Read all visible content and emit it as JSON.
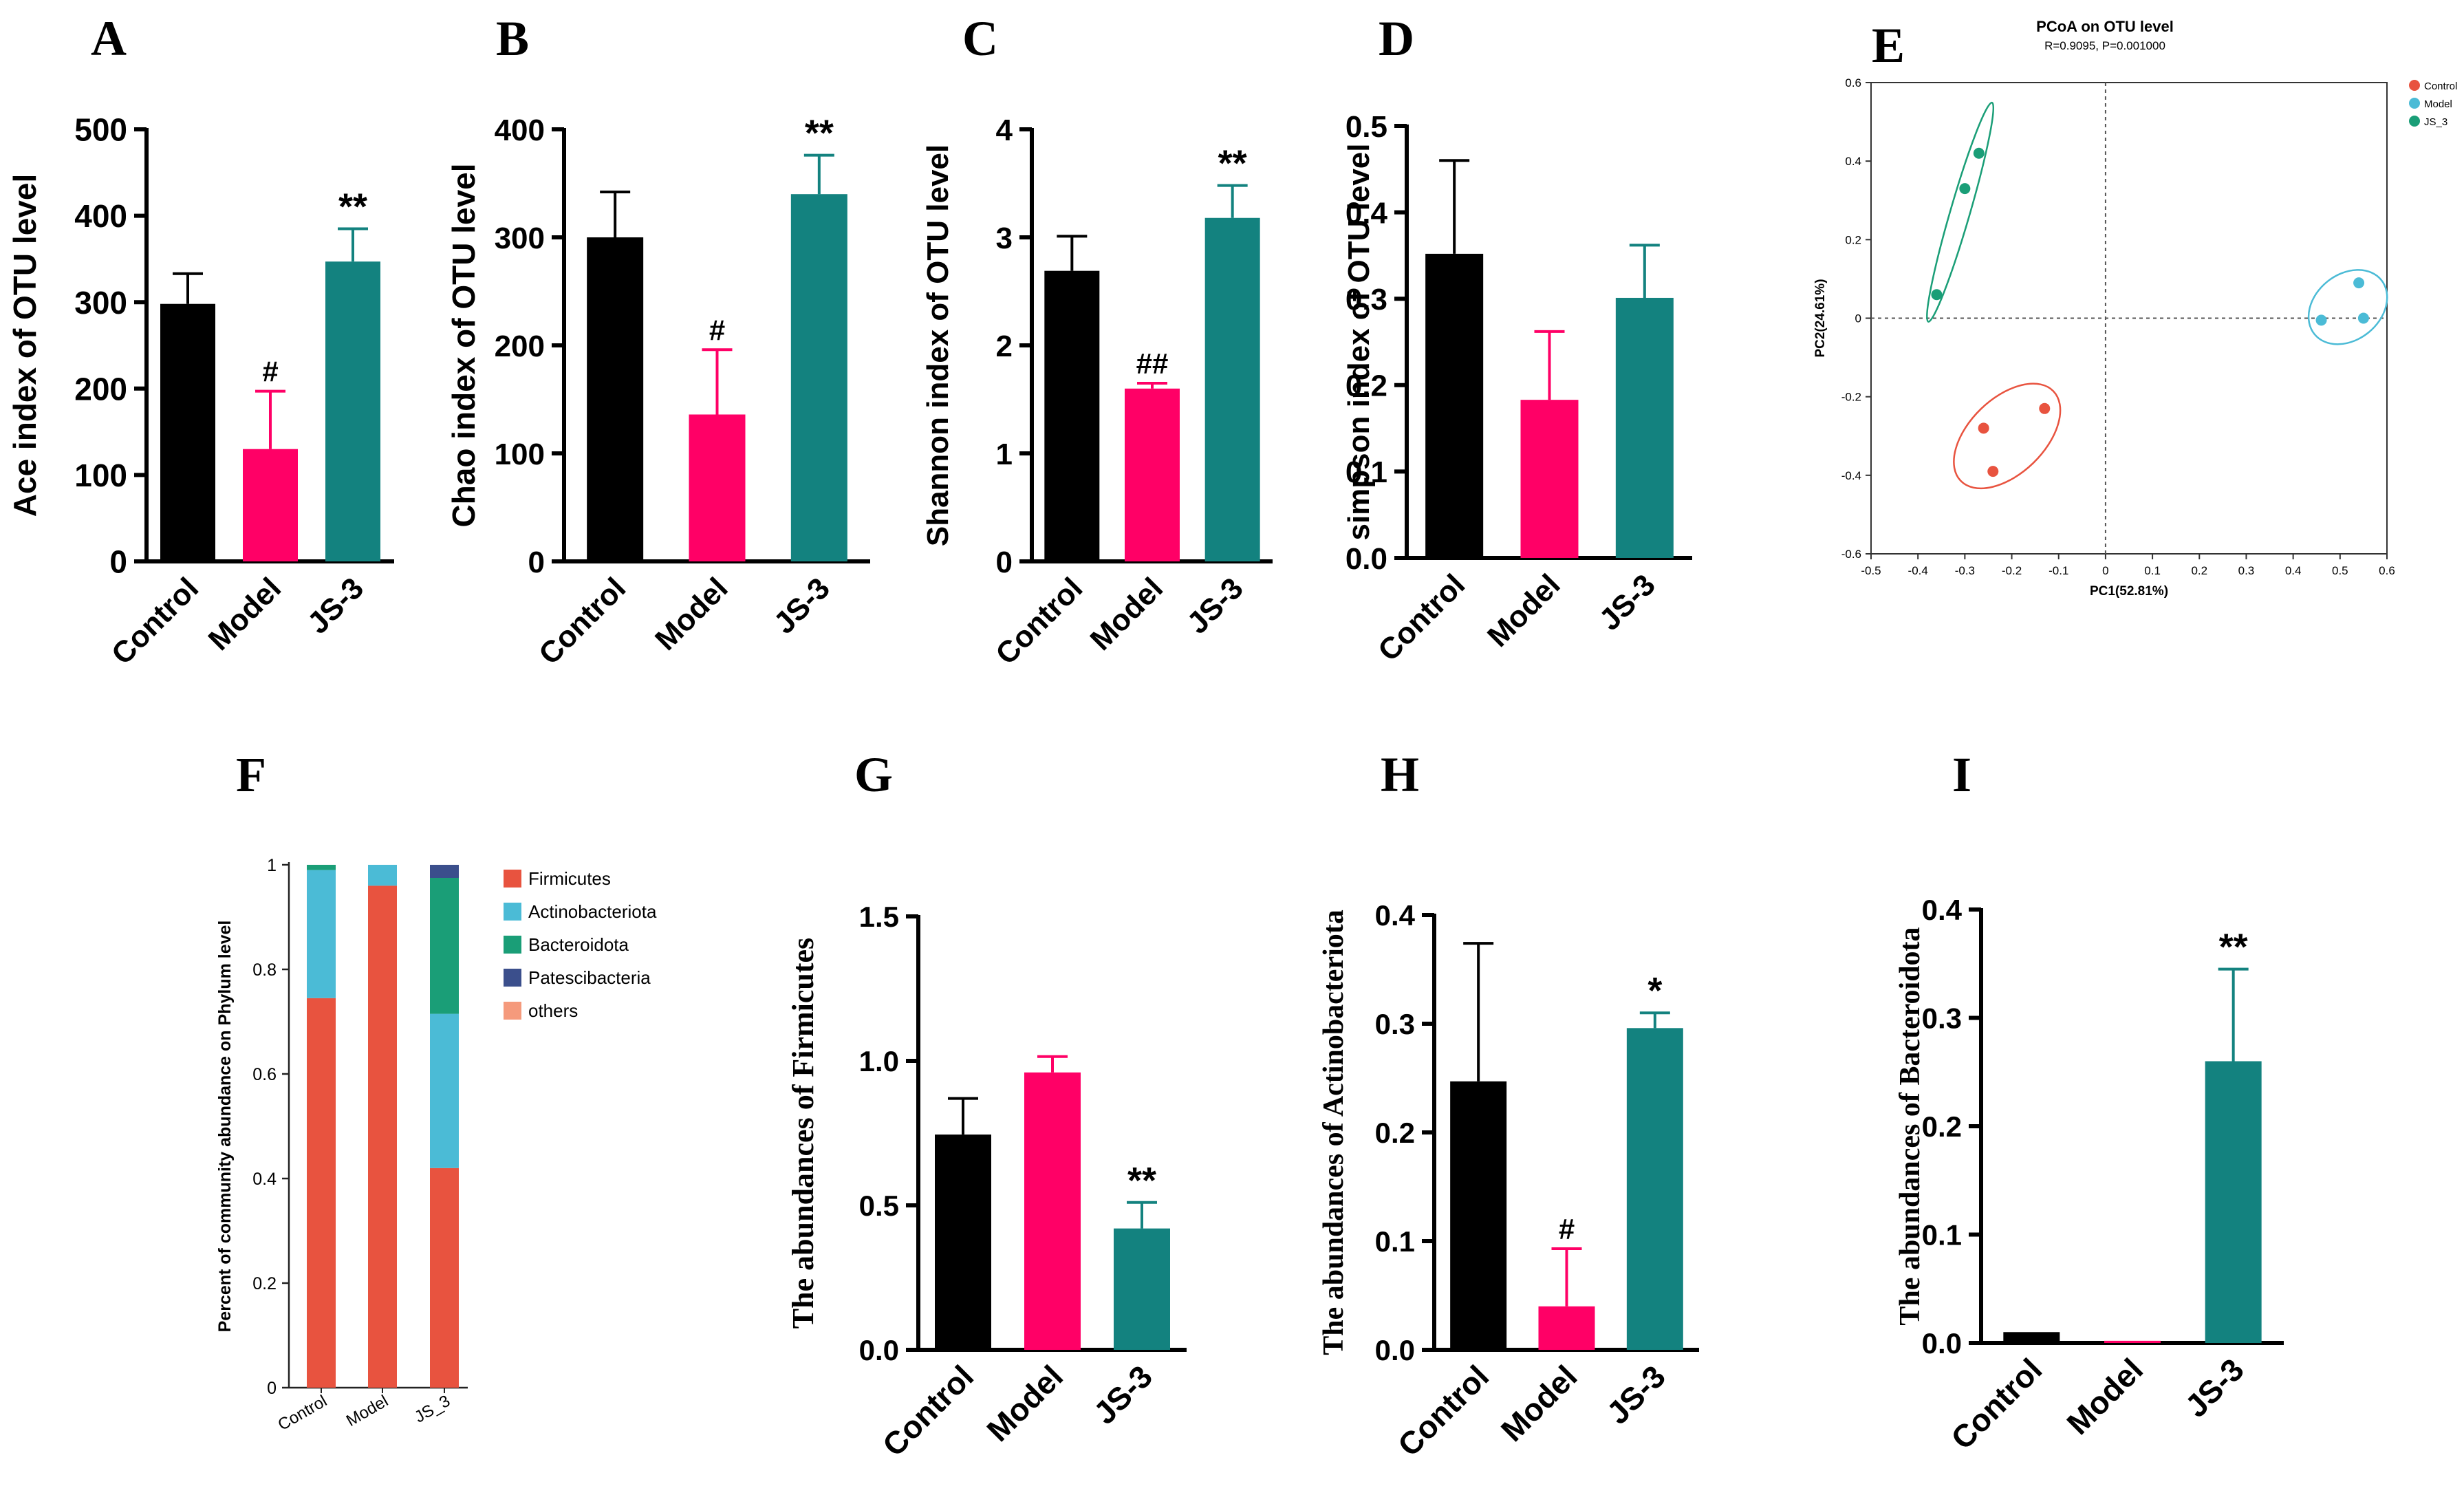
{
  "panels": {
    "A": {
      "letter": "A"
    },
    "B": {
      "letter": "B"
    },
    "C": {
      "letter": "C"
    },
    "D": {
      "letter": "D"
    },
    "E": {
      "letter": "E"
    },
    "F": {
      "letter": "F"
    },
    "G": {
      "letter": "G"
    },
    "H": {
      "letter": "H"
    },
    "I": {
      "letter": "I"
    }
  },
  "colors": {
    "control": "#000000",
    "model": "#ff0066",
    "js3": "#13827f",
    "pcoa_control": "#e8533f",
    "pcoa_model": "#4bbbd6",
    "pcoa_js3": "#1a9e77",
    "firmicutes": "#e8533f",
    "actinobacteriota": "#4bbbd6",
    "bacteroidota": "#1a9e77",
    "patescibacteria": "#3b4f8c",
    "others": "#f59a7c"
  },
  "chart_data": [
    {
      "id": "A",
      "type": "bar",
      "title": "",
      "xlabel": "",
      "ylabel": "Ace index of OTU level",
      "categories": [
        "Control",
        "Model",
        "JS-3"
      ],
      "values": [
        298,
        130,
        347
      ],
      "errors": [
        35,
        67,
        38
      ],
      "annotations": [
        "",
        "#",
        "**"
      ],
      "ylim": [
        0,
        500
      ],
      "yticks": [
        0,
        100,
        200,
        300,
        400,
        500
      ]
    },
    {
      "id": "B",
      "type": "bar",
      "title": "",
      "xlabel": "",
      "ylabel": "Chao index of OTU level",
      "categories": [
        "Control",
        "Model",
        "JS-3"
      ],
      "values": [
        300,
        136,
        340
      ],
      "errors": [
        42,
        60,
        36
      ],
      "annotations": [
        "",
        "#",
        "**"
      ],
      "ylim": [
        0,
        400
      ],
      "yticks": [
        0,
        100,
        200,
        300,
        400
      ]
    },
    {
      "id": "C",
      "type": "bar",
      "title": "",
      "xlabel": "",
      "ylabel": "Shannon index of OTU level",
      "categories": [
        "Control",
        "Model",
        "JS-3"
      ],
      "values": [
        2.69,
        1.6,
        3.18
      ],
      "errors": [
        0.32,
        0.05,
        0.3
      ],
      "annotations": [
        "",
        "##",
        "**"
      ],
      "ylim": [
        0,
        4
      ],
      "yticks": [
        0,
        1,
        2,
        3,
        4
      ]
    },
    {
      "id": "D",
      "type": "bar",
      "title": "",
      "xlabel": "",
      "ylabel": "simpson index of OTU level",
      "categories": [
        "Control",
        "Model",
        "JS-3"
      ],
      "values": [
        0.352,
        0.183,
        0.301
      ],
      "errors": [
        0.108,
        0.079,
        0.061
      ],
      "annotations": [
        "",
        "",
        ""
      ],
      "ylim": [
        0,
        0.5
      ],
      "yticks": [
        0.0,
        0.1,
        0.2,
        0.3,
        0.4,
        0.5
      ]
    },
    {
      "id": "E",
      "type": "scatter",
      "title": "PCoA on OTU level",
      "subtitle": "R=0.9095, P=0.001000",
      "xlabel": "PC1(52.81%)",
      "ylabel": "PC2(24.61%)",
      "xlim": [
        -0.5,
        0.6
      ],
      "ylim": [
        -0.6,
        0.6
      ],
      "xticks": [
        -0.5,
        -0.4,
        -0.3,
        -0.2,
        -0.1,
        0,
        0.1,
        0.2,
        0.3,
        0.4,
        0.5,
        0.6
      ],
      "yticks": [
        -0.6,
        -0.4,
        -0.2,
        0,
        0.2,
        0.4,
        0.6
      ],
      "legend_position": "top-right",
      "series": [
        {
          "name": "Control",
          "points": [
            [
              -0.26,
              -0.28
            ],
            [
              -0.13,
              -0.23
            ],
            [
              -0.24,
              -0.39
            ]
          ]
        },
        {
          "name": "Model",
          "points": [
            [
              0.54,
              0.09
            ],
            [
              0.55,
              0.0
            ],
            [
              0.46,
              -0.005
            ]
          ]
        },
        {
          "name": "JS_3",
          "points": [
            [
              -0.27,
              0.42
            ],
            [
              -0.3,
              0.33
            ],
            [
              -0.36,
              0.06
            ]
          ]
        }
      ]
    },
    {
      "id": "F",
      "type": "bar",
      "stacked": true,
      "title": "",
      "xlabel": "",
      "ylabel": "Percent of community abundance on Phylum level",
      "categories": [
        "Control",
        "Model",
        "JS_3"
      ],
      "series": [
        {
          "name": "Firmicutes",
          "values": [
            0.745,
            0.96,
            0.42
          ]
        },
        {
          "name": "Actinobacteriota",
          "values": [
            0.245,
            0.04,
            0.295
          ]
        },
        {
          "name": "Bacteroidota",
          "values": [
            0.01,
            0.0,
            0.26
          ]
        },
        {
          "name": "Patescibacteria",
          "values": [
            0.0,
            0.0,
            0.025
          ]
        },
        {
          "name": "others",
          "values": [
            0.0,
            0.0,
            0.0
          ]
        }
      ],
      "ylim": [
        0,
        1
      ],
      "yticks": [
        0,
        0.2,
        0.4,
        0.6,
        0.8,
        1
      ],
      "legend_position": "right"
    },
    {
      "id": "G",
      "type": "bar",
      "title": "",
      "xlabel": "",
      "ylabel": "The abundances of Firmicutes",
      "categories": [
        "Control",
        "Model",
        "JS-3"
      ],
      "values": [
        0.745,
        0.96,
        0.42
      ],
      "errors": [
        0.125,
        0.055,
        0.09
      ],
      "annotations": [
        "",
        "",
        "**"
      ],
      "ylim": [
        0,
        1.5
      ],
      "yticks": [
        0.0,
        0.5,
        1.0,
        1.5
      ]
    },
    {
      "id": "H",
      "type": "bar",
      "title": "",
      "xlabel": "",
      "ylabel": "The abundances of Actinobacteriota",
      "categories": [
        "Control",
        "Model",
        "JS-3"
      ],
      "values": [
        0.247,
        0.04,
        0.296
      ],
      "errors": [
        0.127,
        0.053,
        0.014
      ],
      "annotations": [
        "",
        "#",
        "*"
      ],
      "ylim": [
        0,
        0.4
      ],
      "yticks": [
        0.0,
        0.1,
        0.2,
        0.3,
        0.4
      ]
    },
    {
      "id": "I",
      "type": "bar",
      "title": "",
      "xlabel": "",
      "ylabel": "The abundances of Bacteroidota",
      "categories": [
        "Control",
        "Model",
        "JS-3"
      ],
      "values": [
        0.01,
        0.002,
        0.26
      ],
      "errors": [
        0.0,
        0.0,
        0.085
      ],
      "annotations": [
        "",
        "",
        "**"
      ],
      "ylim": [
        0,
        0.4
      ],
      "yticks": [
        0.0,
        0.1,
        0.2,
        0.3,
        0.4
      ]
    }
  ]
}
